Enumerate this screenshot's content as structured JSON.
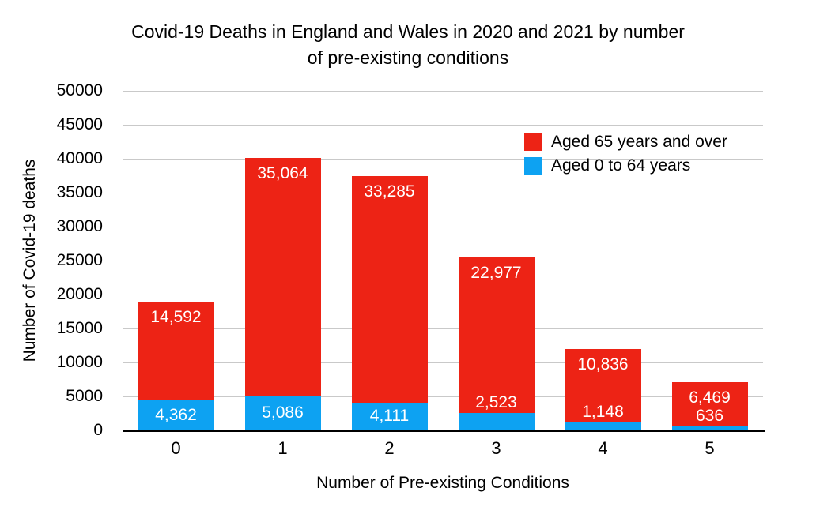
{
  "title": "Covid-19 Deaths in England and Wales in 2020 and 2021 by number of pre-existing conditions",
  "colors": {
    "aged_65_and_over": "#ED2315",
    "aged_0_to_64": "#0DA2F2",
    "gridline": "#C9C9C9",
    "axis_line": "#000000",
    "bar_label_text": "#FFFFFF"
  },
  "legend": {
    "items": [
      {
        "label": "Aged 65 years and over",
        "color": "#ED2315"
      },
      {
        "label": "Aged 0 to 64 years",
        "color": "#0DA2F2"
      }
    ]
  },
  "chart_data": {
    "type": "bar",
    "stacked": true,
    "title": "Covid-19 Deaths in England and Wales in 2020 and 2021 by number of pre-existing conditions",
    "xlabel": "Number of Pre-existing Conditions",
    "ylabel": "Number of Covid-19 deaths",
    "categories": [
      "0",
      "1",
      "2",
      "3",
      "4",
      "5"
    ],
    "series": [
      {
        "name": "Aged 0 to 64 years",
        "color": "#0DA2F2",
        "values": [
          4362,
          5086,
          4111,
          2523,
          1148,
          636
        ],
        "labels": [
          "4,362",
          "5,086",
          "4,111",
          "2,523",
          "1,148",
          "636"
        ]
      },
      {
        "name": "Aged 65 years and over",
        "color": "#ED2315",
        "values": [
          14592,
          35064,
          33285,
          22977,
          10836,
          6469
        ],
        "labels": [
          "14,592",
          "35,064",
          "33,285",
          "22,977",
          "10,836",
          "6,469"
        ]
      }
    ],
    "ylim": [
      0,
      50000
    ],
    "ytick_step": 5000,
    "ytick_labels": [
      "0",
      "5000",
      "10000",
      "15000",
      "20000",
      "25000",
      "30000",
      "35000",
      "40000",
      "45000",
      "50000"
    ],
    "grid": true,
    "legend_position": "top-right"
  }
}
